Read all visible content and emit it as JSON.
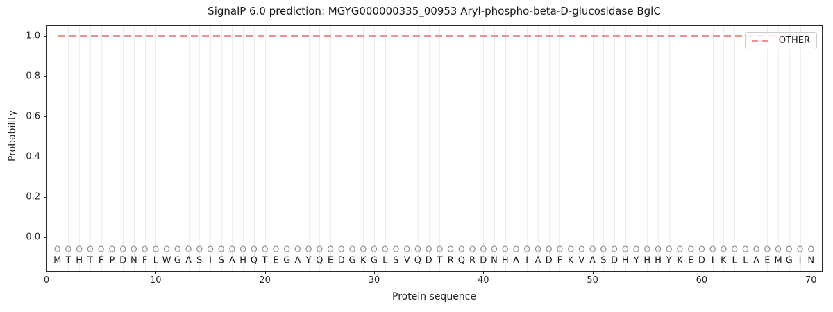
{
  "title": "SignalP 6.0 prediction: MGYG000000335_00953 Aryl-phospho-beta-D-glucosidase BglC",
  "chart_data": {
    "type": "line",
    "title": "SignalP 6.0 prediction: MGYG000000335_00953 Aryl-phospho-beta-D-glucosidase BglC",
    "xlabel": "Protein sequence",
    "ylabel": "Probability",
    "xlim": [
      0,
      71
    ],
    "ylim": [
      -0.168,
      1.051
    ],
    "xticks": [
      0,
      10,
      20,
      30,
      40,
      50,
      60,
      70
    ],
    "yticks": [
      0.0,
      0.2,
      0.4,
      0.6,
      0.8,
      1.0
    ],
    "ytick_labels": [
      "0.0",
      "0.2",
      "0.4",
      "0.6",
      "0.8",
      "1.0"
    ],
    "grid": {
      "vertical_per_residue": true,
      "horizontal": false
    },
    "legend": {
      "position": "upper-right",
      "entries": [
        {
          "label": "OTHER",
          "style": "dashed",
          "color": "#ee9191"
        }
      ]
    },
    "series": [
      {
        "name": "OTHER",
        "style": "dashed",
        "color": "#ee9191",
        "x": [
          1,
          70
        ],
        "y": [
          1.0,
          1.0
        ]
      }
    ],
    "sequence": "MTHTFPDNFLWGASISAHQTEGAYQEDGKGLSVQDTRQRDNHAIADFKVASDHYHHYKEDIKLLAEMGIN",
    "per_position_label": "O",
    "marker_y": -0.057,
    "letter_y": -0.115
  },
  "colors": {
    "background": "#ffffff",
    "spine": "#2a2a2a",
    "grid": "#ededed",
    "other_line": "#ee9191",
    "marker": "#8f8f8f",
    "letter": "#1a1a1a",
    "text": "#262626",
    "legend_border": "#cccccc"
  }
}
